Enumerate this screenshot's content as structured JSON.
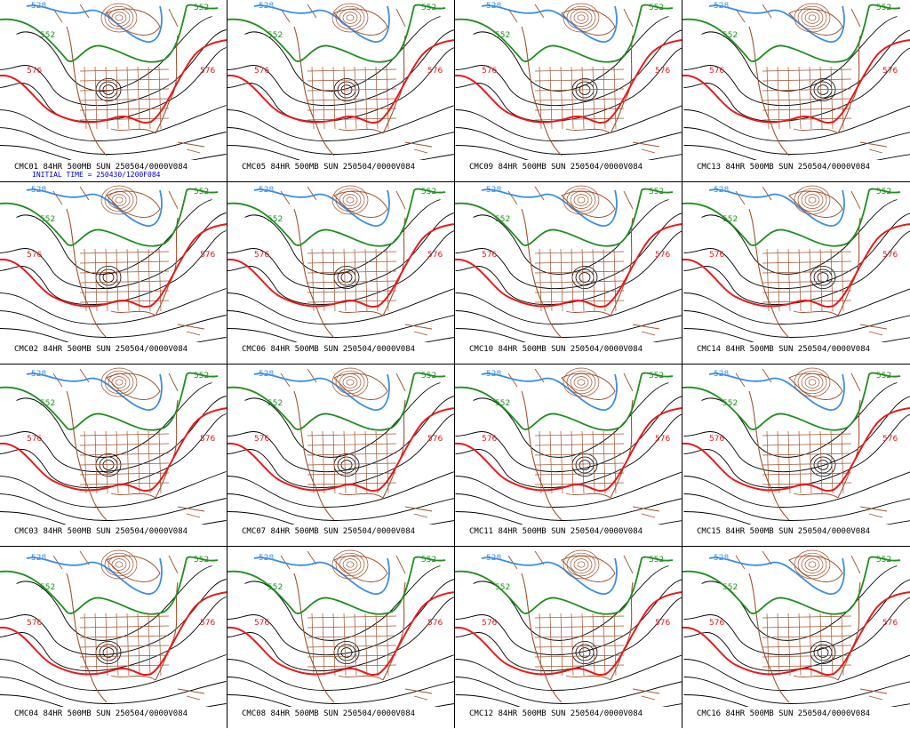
{
  "panels": [
    {
      "caption": "CMC01 84HR 500MB SUN 250504/0000V084",
      "subcaption": "INITIAL TIME = 250430/1200F084"
    },
    {
      "caption": "CMC05 84HR 500MB SUN 250504/0000V084"
    },
    {
      "caption": "CMC09 84HR 500MB SUN 250504/0000V084"
    },
    {
      "caption": "CMC13 84HR 500MB SUN 250504/0000V084"
    },
    {
      "caption": "CMC02 84HR 500MB SUN 250504/0000V084"
    },
    {
      "caption": "CMC06 84HR 500MB SUN 250504/0000V084"
    },
    {
      "caption": "CMC10 84HR 500MB SUN 250504/0000V084"
    },
    {
      "caption": "CMC14 84HR 500MB SUN 250504/0000V084"
    },
    {
      "caption": "CMC03 84HR 500MB SUN 250504/0000V084"
    },
    {
      "caption": "CMC07 84HR 500MB SUN 250504/0000V084"
    },
    {
      "caption": "CMC11 84HR 500MB SUN 250504/0000V084"
    },
    {
      "caption": "CMC15 84HR 500MB SUN 250504/0000V084"
    },
    {
      "caption": "CMC04 84HR 500MB SUN 250504/0000V084"
    },
    {
      "caption": "CMC08 84HR 500MB SUN 250504/0000V084"
    },
    {
      "caption": "CMC12 84HR 500MB SUN 250504/0000V084"
    },
    {
      "caption": "CMC16 84HR 500MB SUN 250504/0000V084"
    }
  ],
  "contour_labels": {
    "red": "576",
    "green": "552",
    "blue": "528"
  },
  "colors": {
    "red_contour": "#e8191a",
    "green_contour": "#1f8f1f",
    "blue_contour": "#3a8ee6",
    "black_contour": "#000000",
    "coastline": "#a0522d"
  }
}
